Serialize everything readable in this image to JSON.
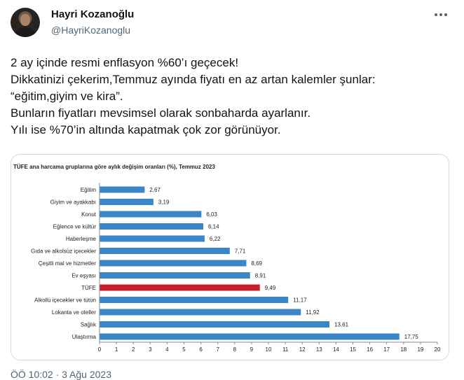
{
  "user": {
    "display_name": "Hayri Kozanoğlu",
    "handle": "@HayriKozanoglu"
  },
  "tweet": {
    "lines": [
      "2 ay içinde resmi enflasyon %60’ı geçecek!",
      "Dikkatinizi çekerim,Temmuz ayında fiyatı en az artan kalemler şunlar:",
      "“eğitim,giyim ve kira”.",
      "Bunların fiyatları mevsimsel olarak sonbaharda ayarlanır.",
      "Yılı ise %70’in altında kapatmak çok zor görünüyor."
    ],
    "timestamp": "ÖÖ 10:02 · 3 Ağu 2023"
  },
  "icons": {
    "more": "more-horizontal-icon"
  },
  "colors": {
    "bar": "#3a86c8",
    "highlight": "#c8202a"
  },
  "chart_data": {
    "type": "bar",
    "orientation": "horizontal",
    "title": "TÜFE ana harcama gruplarına göre aylık değişim oranları (%), Temmuz 2023",
    "categories": [
      "Eğitim",
      "Giyim ve ayakkabı",
      "Konut",
      "Eğlence ve kültür",
      "Haberleşme",
      "Gıda ve alkolsüz içecekler",
      "Çeşitli mal ve hizmetler",
      "Ev eşyası",
      "TÜFE",
      "Alkollü içecekler ve tütün",
      "Lokanta ve oteller",
      "Sağlık",
      "Ulaştırma"
    ],
    "values": [
      2.67,
      3.19,
      6.03,
      6.14,
      6.22,
      7.71,
      8.69,
      8.91,
      9.49,
      11.17,
      11.92,
      13.61,
      17.75
    ],
    "value_labels": [
      "2,67",
      "3,19",
      "6,03",
      "6,14",
      "6,22",
      "7,71",
      "8,69",
      "8,91",
      "9,49",
      "11,17",
      "11,92",
      "13,61",
      "17,75"
    ],
    "highlight": "TÜFE",
    "xlim": [
      0,
      20
    ],
    "xticks": [
      0,
      1,
      2,
      3,
      4,
      5,
      6,
      7,
      8,
      9,
      10,
      11,
      12,
      13,
      14,
      15,
      16,
      17,
      18,
      19,
      20
    ],
    "grid": false
  }
}
